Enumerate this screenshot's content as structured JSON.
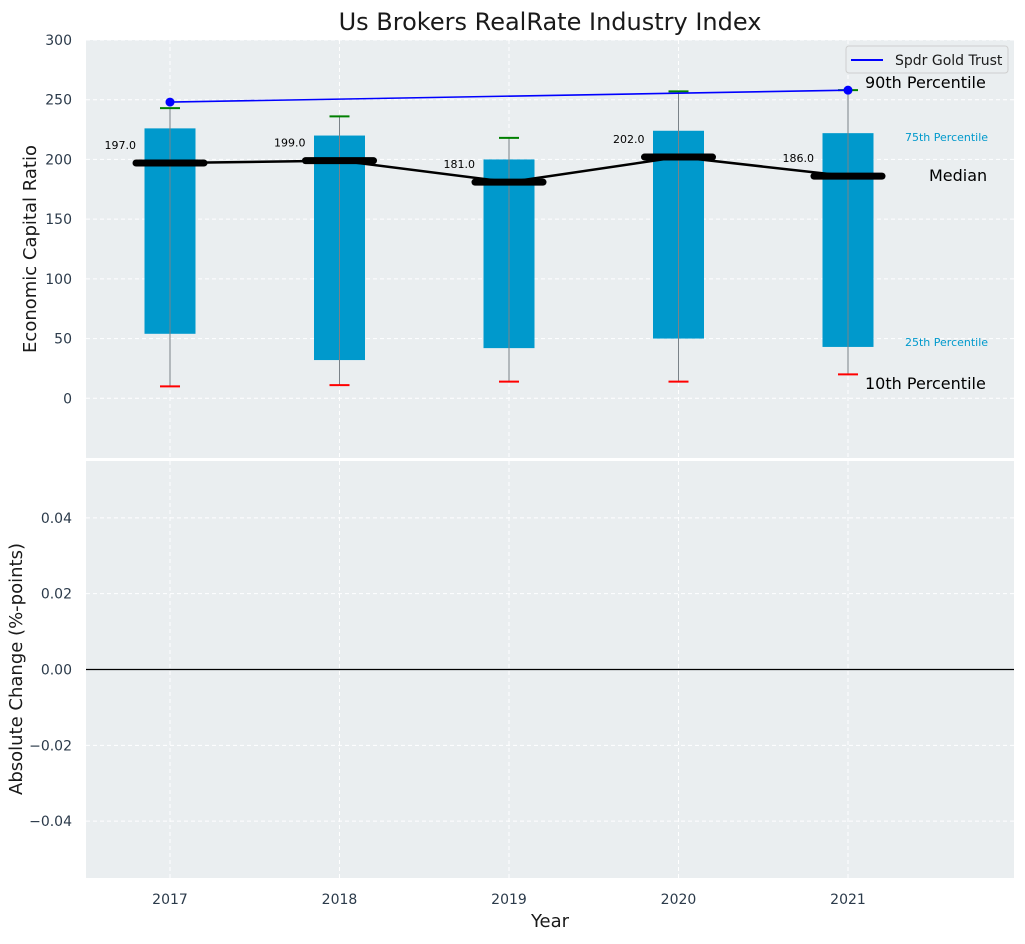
{
  "chart_data": [
    {
      "type": "bar",
      "title": "Us Brokers RealRate Industry Index",
      "xlabel": "",
      "ylabel": "Economic Capital Ratio",
      "ylim": [
        -50,
        300
      ],
      "yticks": [
        "0",
        "50",
        "100",
        "150",
        "200",
        "250",
        "300"
      ],
      "categories": [
        "2017",
        "2018",
        "2019",
        "2020",
        "2021"
      ],
      "percentile_bands": {
        "p25": [
          54,
          32,
          42,
          50,
          43
        ],
        "p75": [
          226,
          220,
          200,
          224,
          222
        ]
      },
      "whiskers": {
        "p10": [
          10,
          11,
          14,
          14,
          20
        ],
        "p90": [
          243,
          236,
          218,
          257,
          258
        ]
      },
      "median": {
        "values": [
          197.0,
          199.0,
          181.0,
          202.0,
          186.0
        ],
        "labels": [
          "197.0",
          "199.0",
          "181.0",
          "202.0",
          "186.0"
        ]
      },
      "series": [
        {
          "name": "Spdr Gold Trust",
          "type": "line",
          "color": "#0000ff",
          "values": [
            248,
            null,
            null,
            null,
            258
          ]
        }
      ],
      "annotations": {
        "p90": "90th Percentile",
        "p75": "75th Percentile",
        "median": "Median",
        "p25": "25th Percentile",
        "p10": "10th Percentile"
      },
      "legend": {
        "position": "top-right",
        "entries": [
          "Spdr Gold Trust"
        ]
      },
      "grid": true,
      "colors": {
        "bar": "#0099cc",
        "median": "#000000",
        "p90_whisker": "#008000",
        "p10_whisker": "#ff0000",
        "series": "#0000ff",
        "background": "#eaeef0"
      }
    },
    {
      "type": "line",
      "xlabel": "Year",
      "ylabel": "Absolute Change (%-points)",
      "ylim": [
        -0.055,
        0.055
      ],
      "yticks": [
        "−0.04",
        "−0.02",
        "0.00",
        "0.02",
        "0.04"
      ],
      "categories": [
        "2017",
        "2018",
        "2019",
        "2020",
        "2021"
      ],
      "reference_line": 0,
      "grid": true
    }
  ]
}
